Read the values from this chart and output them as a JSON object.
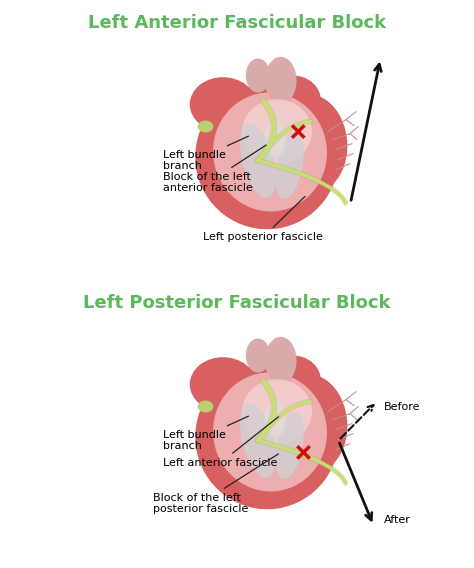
{
  "title1": "Left Anterior Fascicular Block",
  "title2": "Left Posterior Fascicular Block",
  "title_color": "#5cb85c",
  "title_fontsize": 13,
  "bg_color": "#ffffff",
  "heart_dark": "#c94040",
  "heart_mid": "#d96060",
  "heart_light": "#e89090",
  "heart_vlight": "#f0b8b8",
  "heart_inner": "#f5d0d0",
  "bundle_color": "#c8dc78",
  "bundle_dark": "#a0b850",
  "sa_color": "#b8d070",
  "aorta_color": "#d8aaaa",
  "papillary_color": "#c8c8cc",
  "branch_color": "#c09090",
  "x_color": "#cc1010",
  "arrow_color": "#111111",
  "label_fontsize": 8,
  "annotation_fs": 8,
  "label1": [
    "Left bundle\nbranch",
    "Block of the left\nanterior fascicle",
    "Left posterior fascicle"
  ],
  "label2": [
    "Left bundle\nbranch",
    "Left anterior fascicle",
    "Block of the left\nposterior fascicle"
  ],
  "before_after": [
    "Before",
    "After"
  ]
}
